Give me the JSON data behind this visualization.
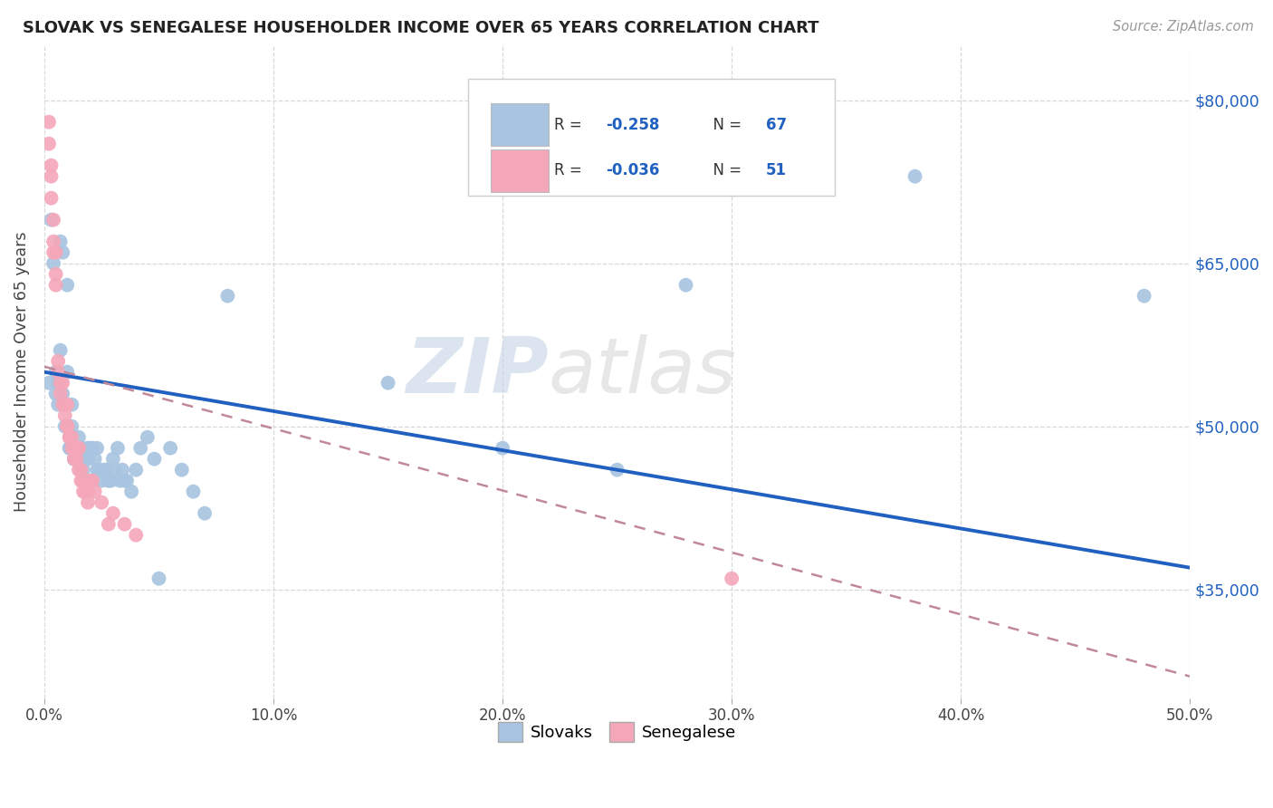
{
  "title": "SLOVAK VS SENEGALESE HOUSEHOLDER INCOME OVER 65 YEARS CORRELATION CHART",
  "source": "Source: ZipAtlas.com",
  "ylabel_label": "Householder Income Over 65 years",
  "legend_slovak": "Slovaks",
  "legend_senegalese": "Senegalese",
  "legend_r_slovak": "R = -0.258",
  "legend_n_slovak": "N = 67",
  "legend_r_senegalese": "R = -0.036",
  "legend_n_senegalese": "N = 51",
  "color_slovak": "#a8c4e0",
  "color_senegalese": "#f4a7b9",
  "color_trendline_slovak": "#2060c0",
  "color_trendline_senegalese": "#c08898",
  "watermark_zip": "ZIP",
  "watermark_atlas": "atlas",
  "background_color": "#ffffff",
  "xlim": [
    0.0,
    0.5
  ],
  "ylim": [
    25000,
    85000
  ],
  "ytick_vals": [
    35000,
    50000,
    65000,
    80000
  ],
  "ytick_labels": [
    "$35,000",
    "$50,000",
    "$65,000",
    "$80,000"
  ],
  "xtick_vals": [
    0.0,
    0.1,
    0.2,
    0.3,
    0.4,
    0.5
  ],
  "xtick_labels": [
    "0.0%",
    "10.0%",
    "20.0%",
    "30.0%",
    "40.0%",
    "50.0%"
  ],
  "trendline_slovak_y0": 55000,
  "trendline_slovak_y1": 37000,
  "trendline_senegalese_y0": 55500,
  "trendline_senegalese_y1": 27000,
  "slovak_x": [
    0.002,
    0.003,
    0.004,
    0.005,
    0.005,
    0.006,
    0.006,
    0.007,
    0.007,
    0.008,
    0.008,
    0.009,
    0.009,
    0.01,
    0.01,
    0.01,
    0.011,
    0.011,
    0.012,
    0.012,
    0.013,
    0.013,
    0.014,
    0.015,
    0.015,
    0.016,
    0.016,
    0.017,
    0.017,
    0.018,
    0.019,
    0.019,
    0.02,
    0.021,
    0.022,
    0.023,
    0.023,
    0.024,
    0.025,
    0.026,
    0.027,
    0.028,
    0.029,
    0.03,
    0.031,
    0.032,
    0.033,
    0.034,
    0.035,
    0.036,
    0.038,
    0.04,
    0.042,
    0.045,
    0.048,
    0.05,
    0.055,
    0.06,
    0.065,
    0.07,
    0.08,
    0.15,
    0.2,
    0.25,
    0.28,
    0.38,
    0.48
  ],
  "slovak_y": [
    54000,
    69000,
    65000,
    53000,
    55000,
    52000,
    54000,
    57000,
    67000,
    53000,
    66000,
    50000,
    52000,
    50000,
    55000,
    63000,
    48000,
    48000,
    50000,
    52000,
    47000,
    47000,
    48000,
    49000,
    47000,
    48000,
    48000,
    46000,
    45000,
    47000,
    47000,
    48000,
    48000,
    48000,
    47000,
    48000,
    46000,
    46000,
    45000,
    46000,
    46000,
    45000,
    45000,
    47000,
    46000,
    48000,
    45000,
    46000,
    45000,
    45000,
    44000,
    46000,
    48000,
    49000,
    47000,
    36000,
    48000,
    46000,
    44000,
    42000,
    62000,
    54000,
    48000,
    46000,
    63000,
    73000,
    62000
  ],
  "senegalese_x": [
    0.002,
    0.002,
    0.003,
    0.003,
    0.003,
    0.004,
    0.004,
    0.004,
    0.005,
    0.005,
    0.005,
    0.006,
    0.006,
    0.007,
    0.007,
    0.008,
    0.008,
    0.009,
    0.009,
    0.01,
    0.01,
    0.01,
    0.011,
    0.011,
    0.011,
    0.012,
    0.012,
    0.013,
    0.013,
    0.014,
    0.014,
    0.015,
    0.015,
    0.015,
    0.016,
    0.016,
    0.017,
    0.017,
    0.018,
    0.018,
    0.019,
    0.019,
    0.02,
    0.021,
    0.022,
    0.025,
    0.028,
    0.03,
    0.035,
    0.04,
    0.3
  ],
  "senegalese_y": [
    76000,
    78000,
    74000,
    73000,
    71000,
    69000,
    67000,
    66000,
    66000,
    64000,
    63000,
    56000,
    55000,
    54000,
    53000,
    54000,
    52000,
    52000,
    51000,
    52000,
    50000,
    50000,
    49000,
    49000,
    49000,
    48000,
    49000,
    48000,
    47000,
    47000,
    48000,
    48000,
    48000,
    46000,
    46000,
    45000,
    45000,
    44000,
    44000,
    45000,
    43000,
    44000,
    45000,
    45000,
    44000,
    43000,
    41000,
    42000,
    41000,
    40000,
    36000
  ]
}
